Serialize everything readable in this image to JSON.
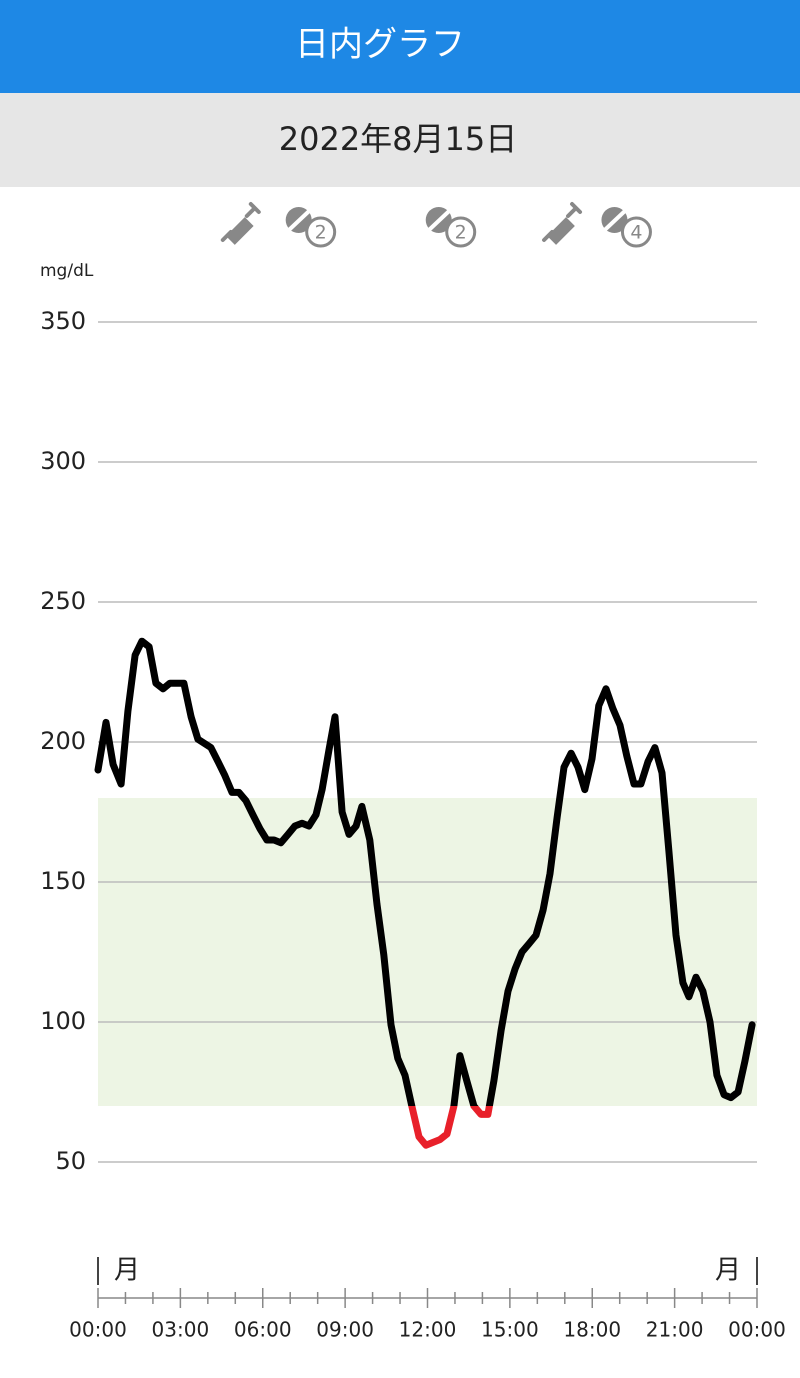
{
  "header": {
    "title": "日内グラフ",
    "date": "2022年8月15日"
  },
  "chart_data": {
    "type": "line",
    "y_label": "mg/dL",
    "x": [
      0,
      0.29,
      0.55,
      0.84,
      1.09,
      1.35,
      1.6,
      1.86,
      2.11,
      2.37,
      2.62,
      3.13,
      3.39,
      3.64,
      4.11,
      4.37,
      4.62,
      4.88,
      5.13,
      5.39,
      5.64,
      5.9,
      6.15,
      6.41,
      6.66,
      6.92,
      7.17,
      7.43,
      7.68,
      7.94,
      8.16,
      8.41,
      8.63,
      8.89,
      9.14,
      9.4,
      9.61,
      9.9,
      10.16,
      10.41,
      10.67,
      10.92,
      11.18,
      11.43,
      11.69,
      11.94,
      12.2,
      12.45,
      12.71,
      12.96,
      13.18,
      13.43,
      13.69,
      13.95,
      14.2,
      14.42,
      14.68,
      14.93,
      15.19,
      15.44,
      15.7,
      15.95,
      16.21,
      16.46,
      16.72,
      16.97,
      17.23,
      17.48,
      17.73,
      17.99,
      18.24,
      18.5,
      18.75,
      19.01,
      19.26,
      19.52,
      19.77,
      20.03,
      20.28,
      20.54,
      20.79,
      21.05,
      21.3,
      21.52,
      21.78,
      22.03,
      22.29,
      22.54,
      22.8,
      23.05,
      23.31,
      23.56,
      23.82
    ],
    "values": [
      190,
      207,
      192,
      185,
      211,
      231,
      236,
      234,
      221,
      219,
      221,
      221,
      209,
      201,
      198,
      193,
      188,
      182,
      182,
      179,
      174,
      169,
      165,
      165,
      164,
      167,
      170,
      171,
      170,
      174,
      183,
      197,
      209,
      175,
      167,
      170,
      177,
      165,
      142,
      124,
      99,
      87,
      81,
      70,
      59,
      56,
      57,
      58,
      60,
      70,
      88,
      79,
      70,
      67,
      67,
      79,
      97,
      111,
      119,
      125,
      128,
      131,
      140,
      153,
      173,
      191,
      196,
      191,
      183,
      194,
      213,
      219,
      212,
      206,
      195,
      185,
      185,
      193,
      198,
      189,
      161,
      131,
      114,
      109,
      116,
      111,
      100,
      81,
      74,
      73,
      75,
      86,
      99
    ],
    "color": "#000000",
    "low_color": "#e8202a",
    "target_range": [
      70,
      180
    ],
    "target_color": "#edf5e4",
    "xlim": [
      0,
      24
    ],
    "xticks": [
      {
        "value": 0,
        "label": "00:00"
      },
      {
        "value": 3,
        "label": "03:00"
      },
      {
        "value": 6,
        "label": "06:00"
      },
      {
        "value": 9,
        "label": "09:00"
      },
      {
        "value": 12,
        "label": "12:00"
      },
      {
        "value": 15,
        "label": "15:00"
      },
      {
        "value": 18,
        "label": "18:00"
      },
      {
        "value": 21,
        "label": "21:00"
      },
      {
        "value": 24,
        "label": "00:00"
      }
    ],
    "day_labels": [
      "月",
      "月"
    ],
    "ylim": [
      50,
      350
    ],
    "yticks": [
      50,
      100,
      150,
      200,
      250,
      300,
      350
    ],
    "grid": true,
    "events": [
      {
        "kind": "insulin",
        "x": 5.2
      },
      {
        "kind": "meal",
        "x": 7.6,
        "label": "2"
      },
      {
        "kind": "meal",
        "x": 12.7,
        "label": "2"
      },
      {
        "kind": "insulin",
        "x": 16.9
      },
      {
        "kind": "meal",
        "x": 19.1,
        "label": "4"
      }
    ]
  }
}
